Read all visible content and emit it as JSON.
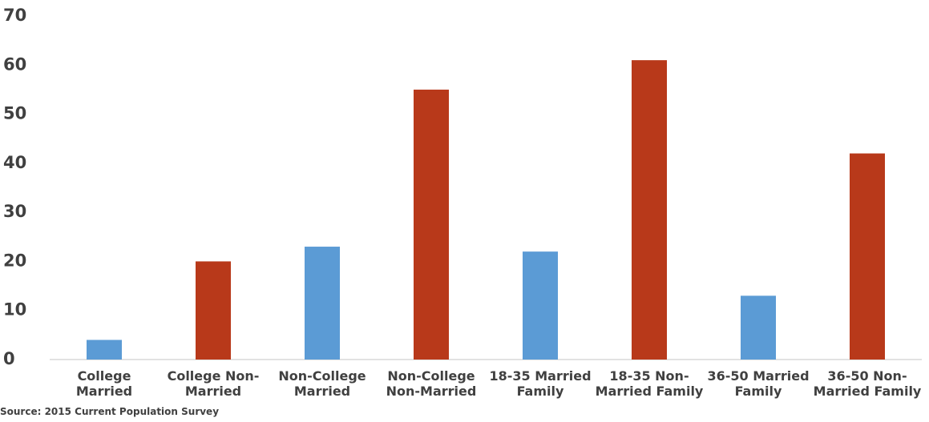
{
  "chart_data": {
    "type": "bar",
    "categories": [
      "College Married",
      "College Non-Married",
      "Non-College Married",
      "Non-College Non-Married",
      "18-35 Married Family",
      "18-35 Non-Married Family",
      "36-50 Married Family",
      "36-50 Non-Married Family"
    ],
    "values": [
      4,
      20,
      23,
      55,
      22,
      61,
      13,
      42
    ],
    "colors": [
      "#5b9bd5",
      "#b8391a",
      "#5b9bd5",
      "#b8391a",
      "#5b9bd5",
      "#b8391a",
      "#5b9bd5",
      "#b8391a"
    ],
    "ylim": [
      0,
      70
    ],
    "yticks": [
      0,
      10,
      20,
      30,
      40,
      50,
      60,
      70
    ],
    "grid": false,
    "source": "Source: 2015 Current Population Survey"
  }
}
